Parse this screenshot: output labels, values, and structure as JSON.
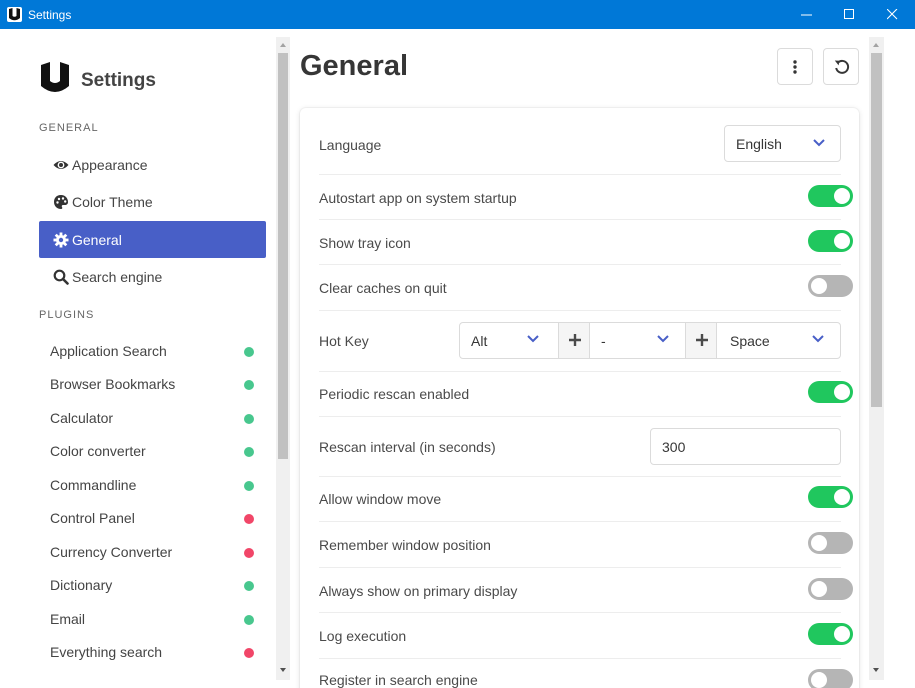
{
  "window": {
    "title": "Settings",
    "minimize_label": "Minimize",
    "maximize_label": "Maximize",
    "close_label": "Close"
  },
  "sidebar": {
    "brand_title": "Settings",
    "general_section": "GENERAL",
    "plugins_section": "PLUGINS",
    "nav_items": [
      {
        "label": "Appearance",
        "icon": "eye-icon",
        "active": false
      },
      {
        "label": "Color Theme",
        "icon": "palette-icon",
        "active": false
      },
      {
        "label": "General",
        "icon": "gear-icon",
        "active": true
      },
      {
        "label": "Search engine",
        "icon": "search-icon",
        "active": false
      }
    ],
    "plugins": [
      {
        "label": "Application Search",
        "status": "enabled"
      },
      {
        "label": "Browser Bookmarks",
        "status": "enabled"
      },
      {
        "label": "Calculator",
        "status": "enabled"
      },
      {
        "label": "Color converter",
        "status": "enabled"
      },
      {
        "label": "Commandline",
        "status": "enabled"
      },
      {
        "label": "Control Panel",
        "status": "disabled"
      },
      {
        "label": "Currency Converter",
        "status": "disabled"
      },
      {
        "label": "Dictionary",
        "status": "enabled"
      },
      {
        "label": "Email",
        "status": "enabled"
      },
      {
        "label": "Everything search",
        "status": "disabled"
      }
    ]
  },
  "main": {
    "title": "General",
    "more_button_icon": "more-vertical-icon",
    "reset_button_icon": "undo-icon",
    "settings": {
      "language": {
        "label": "Language",
        "value": "English"
      },
      "autostart": {
        "label": "Autostart app on system startup",
        "enabled": true
      },
      "tray_icon": {
        "label": "Show tray icon",
        "enabled": true
      },
      "clear_caches": {
        "label": "Clear caches on quit",
        "enabled": false
      },
      "hotkey": {
        "label": "Hot Key",
        "modifier1": "Alt",
        "modifier2": "-",
        "key": "Space"
      },
      "periodic_rescan": {
        "label": "Periodic rescan enabled",
        "enabled": true
      },
      "rescan_interval": {
        "label": "Rescan interval (in seconds)",
        "value": "300"
      },
      "window_move": {
        "label": "Allow window move",
        "enabled": true
      },
      "remember_position": {
        "label": "Remember window position",
        "enabled": false
      },
      "primary_display": {
        "label": "Always show on primary display",
        "enabled": false
      },
      "log_execution": {
        "label": "Log execution",
        "enabled": true
      },
      "register_shortcut": {
        "label": "Register in search engine",
        "enabled": false
      }
    }
  },
  "colors": {
    "accent": "#485fc7",
    "titlebar": "#0078d7",
    "toggle_on": "#20c75e",
    "toggle_off": "#b5b5b5",
    "status_enabled": "#48c78e",
    "status_disabled": "#f14668"
  }
}
